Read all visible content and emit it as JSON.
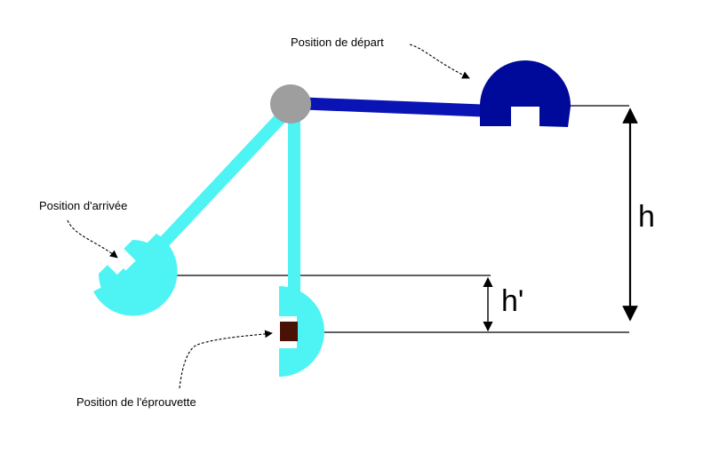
{
  "labels": {
    "start": "Position de départ",
    "arrival": "Position d'arrivée",
    "specimen": "Position de l'éprouvette",
    "h": "h",
    "h_prime": "h'"
  },
  "colors": {
    "pivot": "#9e9e9e",
    "start_arm": "#0a14b4",
    "start_hammer": "#000a9a",
    "swing": "#4ef3f3",
    "specimen": "#4a1205",
    "lines": "#000000"
  }
}
